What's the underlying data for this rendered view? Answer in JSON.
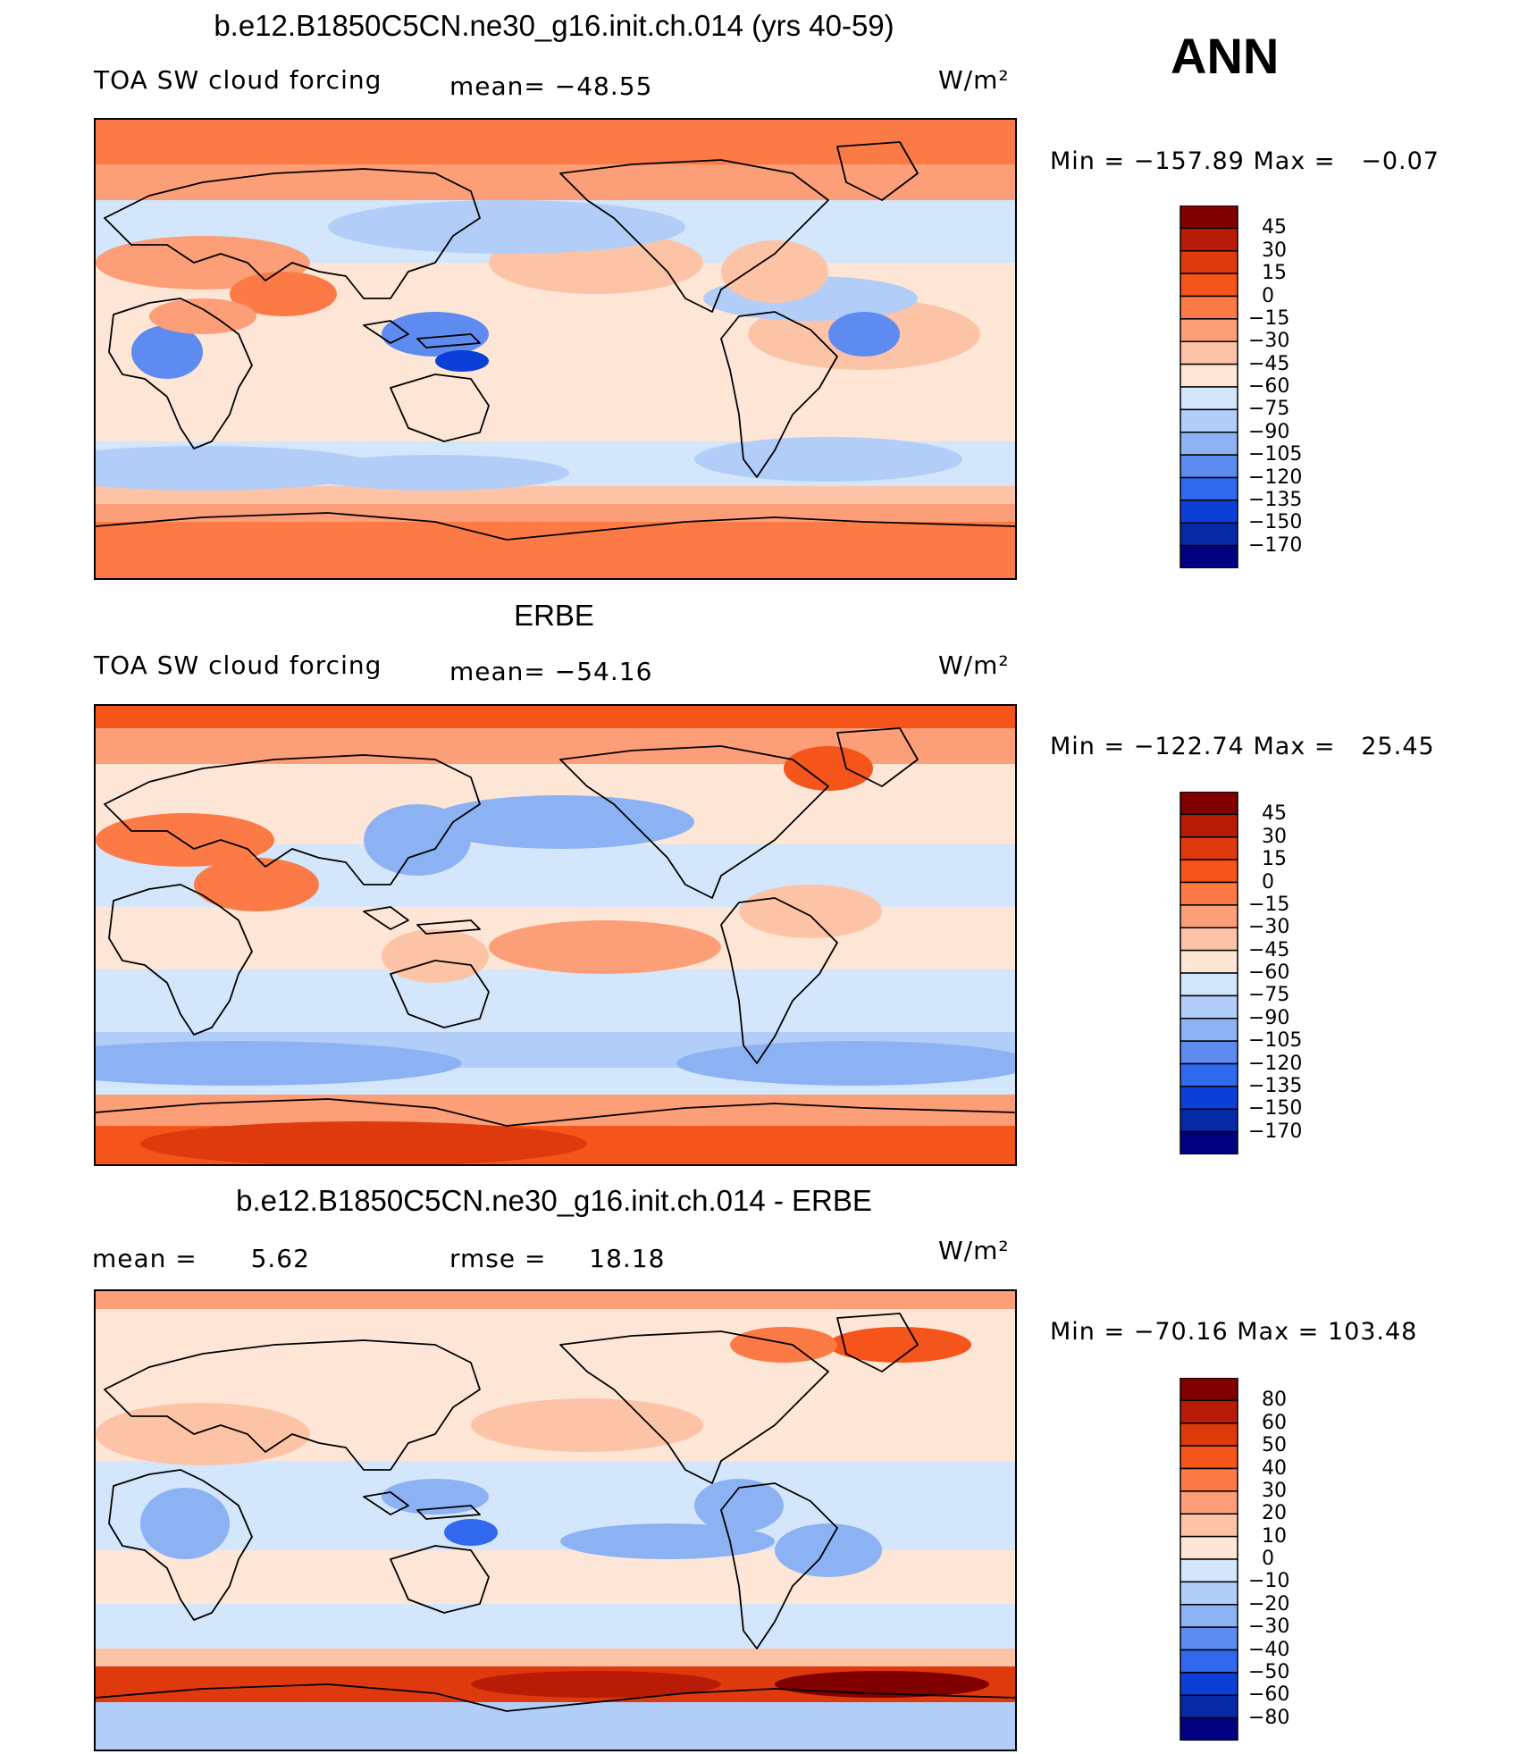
{
  "season": "ANN",
  "chart_data": [
    {
      "type": "heatmap",
      "title": "b.e12.B1850C5CN.ne30_g16.init.ch.014 (yrs 40-59)",
      "variable": "TOA SW cloud forcing",
      "mean_label": "mean= −48.55",
      "units": "W/m²",
      "min_label": "Min",
      "min_value": "−157.89",
      "max_label": "Max",
      "max_value": "−0.07",
      "min": -157.89,
      "max": -0.07,
      "mean": -48.55,
      "colorbar_levels": [
        "45",
        "30",
        "15",
        "0",
        "−15",
        "−30",
        "−45",
        "−60",
        "−75",
        "−90",
        "−105",
        "−120",
        "−135",
        "−150",
        "−170"
      ]
    },
    {
      "type": "heatmap",
      "title": "ERBE",
      "variable": "TOA SW cloud forcing",
      "mean_label": "mean= −54.16",
      "units": "W/m²",
      "min_label": "Min",
      "min_value": "−122.74",
      "max_label": "Max",
      "max_value": "25.45",
      "min": -122.74,
      "max": 25.45,
      "mean": -54.16,
      "colorbar_levels": [
        "45",
        "30",
        "15",
        "0",
        "−15",
        "−30",
        "−45",
        "−60",
        "−75",
        "−90",
        "−105",
        "−120",
        "−135",
        "−150",
        "−170"
      ]
    },
    {
      "type": "heatmap",
      "title": "b.e12.B1850C5CN.ne30_g16.init.ch.014 - ERBE",
      "mean_label": "mean =",
      "mean_value": "5.62",
      "rmse_label": "rmse =",
      "rmse_value": "18.18",
      "units": "W/m²",
      "min_label": "Min",
      "min_value": "−70.16",
      "max_label": "Max",
      "max_value": "103.48",
      "min": -70.16,
      "max": 103.48,
      "mean": 5.62,
      "rmse": 18.18,
      "colorbar_levels": [
        "80",
        "60",
        "50",
        "40",
        "30",
        "20",
        "10",
        "0",
        "−10",
        "−20",
        "−30",
        "−40",
        "−50",
        "−60",
        "−80"
      ]
    }
  ],
  "palette": [
    "#800000",
    "#b81c06",
    "#de3a0e",
    "#f5541a",
    "#fb7a45",
    "#fc9e77",
    "#fdc3a7",
    "#fee6d6",
    "#d4e6fb",
    "#b2cdf7",
    "#8db2f3",
    "#5d8bf0",
    "#3068ee",
    "#0c3fd8",
    "#062aa6",
    "#000080"
  ]
}
